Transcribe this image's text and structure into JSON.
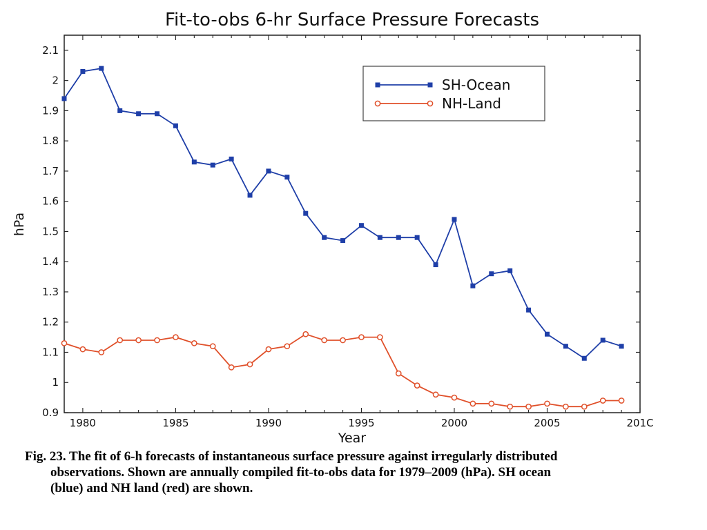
{
  "chart_data": {
    "type": "line",
    "title": "Fit-to-obs 6-hr Surface Pressure Forecasts",
    "xlabel": "Year",
    "ylabel": "hPa",
    "xlim": [
      1979,
      2010
    ],
    "ylim": [
      0.9,
      2.15
    ],
    "x_ticks": [
      "1980",
      "1985",
      "1990",
      "1995",
      "2000",
      "2005",
      "201C"
    ],
    "y_ticks": [
      "0.9",
      "1",
      "1.1",
      "1.2",
      "1.3",
      "1.4",
      "1.5",
      "1.6",
      "1.7",
      "1.8",
      "1.9",
      "2",
      "2.1"
    ],
    "legend_position": "top-right",
    "grid": false,
    "x": [
      1979,
      1980,
      1981,
      1982,
      1983,
      1984,
      1985,
      1986,
      1987,
      1988,
      1989,
      1990,
      1991,
      1992,
      1993,
      1994,
      1995,
      1996,
      1997,
      1998,
      1999,
      2000,
      2001,
      2002,
      2003,
      2004,
      2005,
      2006,
      2007,
      2008,
      2009
    ],
    "series": [
      {
        "name": "SH-Ocean",
        "color": "#1f3fa8",
        "marker": "square",
        "values": [
          1.94,
          2.03,
          2.04,
          1.9,
          1.89,
          1.89,
          1.85,
          1.73,
          1.72,
          1.74,
          1.62,
          1.7,
          1.68,
          1.56,
          1.48,
          1.47,
          1.52,
          1.48,
          1.48,
          1.48,
          1.39,
          1.54,
          1.32,
          1.36,
          1.37,
          1.24,
          1.16,
          1.12,
          1.08,
          1.14,
          1.12
        ]
      },
      {
        "name": "NH-Land",
        "color": "#e0502a",
        "marker": "circle",
        "values": [
          1.13,
          1.11,
          1.1,
          1.14,
          1.14,
          1.14,
          1.15,
          1.13,
          1.12,
          1.05,
          1.06,
          1.11,
          1.12,
          1.16,
          1.14,
          1.14,
          1.15,
          1.15,
          1.03,
          0.99,
          0.96,
          0.95,
          0.93,
          0.93,
          0.92,
          0.92,
          0.93,
          0.92,
          0.92,
          0.94,
          0.94
        ]
      }
    ]
  },
  "caption": {
    "line1": "Fig. 23. The fit of 6-h forecasts of instantaneous surface pressure against irregularly distributed",
    "line2": "observations. Shown are annually compiled fit-to-obs data for 1979–2009 (hPa). SH ocean",
    "line3": "(blue) and NH land (red) are shown."
  }
}
